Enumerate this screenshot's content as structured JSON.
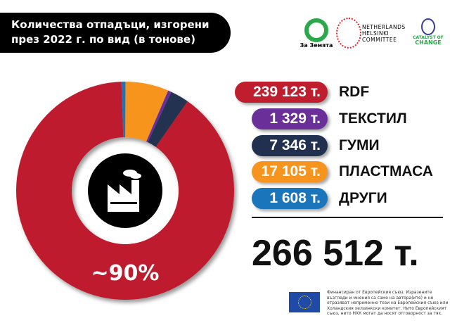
{
  "header": {
    "title_line1": "Количества отпадъци, изгорени",
    "title_line2": "през 2022 г. по вид (в тонове)"
  },
  "logos": {
    "za_zemyata": "За Земята",
    "nhc": [
      "NETHERLANDS",
      "HELSINKI",
      "COMMITTEE"
    ],
    "catalyst": [
      "CATALYST OF",
      "CHANGE"
    ]
  },
  "chart_data": {
    "type": "pie",
    "donut": true,
    "categories": [
      "RDF",
      "ТЕКСТИЛ",
      "ГУМИ",
      "ПЛАСТМАСА",
      "ДРУГИ"
    ],
    "values": [
      239123,
      1329,
      7346,
      17105,
      1608
    ],
    "value_labels": [
      "239 123 т.",
      "1 329 т.",
      "7 346 т.",
      "17 105 т.",
      "1 608 т."
    ],
    "colors": [
      "#be1e2d",
      "#6b2f9a",
      "#22304f",
      "#f7941d",
      "#1a75bb"
    ],
    "annotation": "~90%",
    "center_icon": "factory-icon",
    "total_label": "266 512 т."
  },
  "footer": {
    "disclaimer": "Финансиран от Европейския съюз. Изразените възгледи и мнения са само на автора(ите) и не отразяват непременно тези на Европейския съюз или Холандския хелзинкски комитет. Нито Европейският съюз, нито НХК могат да носят отговорност за тях."
  }
}
